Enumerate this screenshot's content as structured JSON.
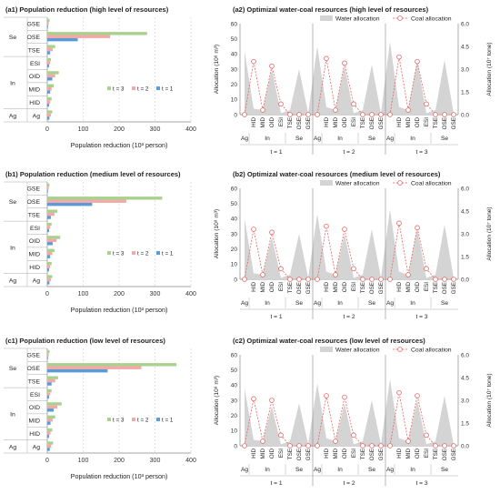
{
  "chart_data": [
    {
      "id": "a1",
      "type": "bar",
      "orientation": "horizontal",
      "title": "(a1) Population reduction  (high level of resources)",
      "xlabel": "Population reduction  (10³ person)",
      "xlim": [
        0,
        400
      ],
      "xticks": [
        0,
        100,
        200,
        300,
        400
      ],
      "categories": [
        "GSE",
        "OSE",
        "TSE",
        "ESI",
        "OID",
        "MID",
        "HID",
        "Ag"
      ],
      "groups": [
        {
          "label": "Se",
          "from": 0,
          "to": 2
        },
        {
          "label": "In",
          "from": 3,
          "to": 6
        },
        {
          "label": "Ag",
          "from": 7,
          "to": 7
        }
      ],
      "series": [
        {
          "name": "t = 3",
          "color": "#a9d18e",
          "values": [
            6,
            278,
            22,
            10,
            32,
            18,
            12,
            14
          ]
        },
        {
          "name": "t = 2",
          "color": "#f4a9a8",
          "values": [
            4,
            175,
            15,
            8,
            22,
            12,
            8,
            10
          ]
        },
        {
          "name": "t = 1",
          "color": "#5b9bd5",
          "values": [
            2,
            85,
            8,
            5,
            14,
            8,
            5,
            6
          ]
        }
      ],
      "legend": "inside-bottom"
    },
    {
      "id": "b1",
      "type": "bar",
      "orientation": "horizontal",
      "title": "(b1) Population reduction  (medium level of resources)",
      "xlabel": "Population reduction  (10³ person)",
      "xlim": [
        0,
        400
      ],
      "xticks": [
        0,
        100,
        200,
        300,
        400
      ],
      "categories": [
        "GSE",
        "OSE",
        "TSE",
        "ESI",
        "OID",
        "MID",
        "HID",
        "Ag"
      ],
      "groups": [
        {
          "label": "Se",
          "from": 0,
          "to": 2
        },
        {
          "label": "In",
          "from": 3,
          "to": 6
        },
        {
          "label": "Ag",
          "from": 7,
          "to": 7
        }
      ],
      "series": [
        {
          "name": "t = 3",
          "color": "#a9d18e",
          "values": [
            6,
            320,
            28,
            12,
            36,
            20,
            12,
            14
          ]
        },
        {
          "name": "t = 2",
          "color": "#f4a9a8",
          "values": [
            4,
            220,
            20,
            8,
            26,
            14,
            8,
            10
          ]
        },
        {
          "name": "t = 1",
          "color": "#5b9bd5",
          "values": [
            2,
            125,
            10,
            5,
            15,
            8,
            5,
            6
          ]
        }
      ],
      "legend": "inside-bottom"
    },
    {
      "id": "c1",
      "type": "bar",
      "orientation": "horizontal",
      "title": "(c1) Population reduction  (low level of resources)",
      "xlabel": "Population reduction  (10³ person)",
      "xlim": [
        0,
        400
      ],
      "xticks": [
        0,
        100,
        200,
        300,
        400
      ],
      "categories": [
        "GSE",
        "OSE",
        "TSE",
        "ESI",
        "OID",
        "MID",
        "HID",
        "Ag"
      ],
      "groups": [
        {
          "label": "Se",
          "from": 0,
          "to": 2
        },
        {
          "label": "In",
          "from": 3,
          "to": 6
        },
        {
          "label": "Ag",
          "from": 7,
          "to": 7
        }
      ],
      "series": [
        {
          "name": "t = 3",
          "color": "#a9d18e",
          "values": [
            6,
            360,
            30,
            12,
            40,
            22,
            14,
            16
          ]
        },
        {
          "name": "t = 2",
          "color": "#f4a9a8",
          "values": [
            4,
            262,
            22,
            8,
            28,
            15,
            9,
            11
          ]
        },
        {
          "name": "t = 1",
          "color": "#5b9bd5",
          "values": [
            2,
            168,
            12,
            5,
            18,
            9,
            5,
            7
          ]
        }
      ],
      "legend": "inside-bottom"
    },
    {
      "id": "a2",
      "type": "area+line",
      "dual_axis": true,
      "title": "(a2)  Optimizal water-coal resources (high level of resources)",
      "ylabel": "Allocation (10⁸ m³)",
      "ylabel2": "Allocation (10⁷ tone)",
      "ylim": [
        0,
        60
      ],
      "yticks": [
        0,
        10,
        20,
        30,
        40,
        50,
        60
      ],
      "ylim2": [
        0,
        6
      ],
      "yticks2": [
        "0.0",
        "1.5",
        "3.0",
        "4.5",
        "6.0"
      ],
      "categories": [
        "Ag",
        "HID",
        "MID",
        "OID",
        "ESI",
        "TSE",
        "OSE",
        "GSE",
        "Ag",
        "HID",
        "MID",
        "OID",
        "ESI",
        "TSE",
        "OSE",
        "GSE",
        "Ag",
        "HID",
        "MID",
        "OID",
        "ESI",
        "TSE",
        "OSE",
        "GSE"
      ],
      "period_labels": [
        "t = 1",
        "t = 2",
        "t = 3"
      ],
      "group_labels": [
        {
          "label": "Ag",
          "index": 0
        },
        {
          "label": "In",
          "index": 2.5
        },
        {
          "label": "Se",
          "index": 6
        },
        {
          "label": "Ag",
          "index": 8
        },
        {
          "label": "In",
          "index": 10.5
        },
        {
          "label": "Se",
          "index": 14
        },
        {
          "label": "Ag",
          "index": 16
        },
        {
          "label": "In",
          "index": 18.5
        },
        {
          "label": "Se",
          "index": 22
        }
      ],
      "series": [
        {
          "name": "Water allocation",
          "type": "area",
          "axis": "left",
          "color": "#d4d4d4",
          "values": [
            42,
            4,
            3,
            30,
            1,
            3,
            30,
            1,
            45,
            5,
            3,
            32,
            1,
            3,
            33,
            1,
            48,
            5,
            3,
            35,
            1,
            3,
            36,
            1
          ]
        },
        {
          "name": "Coal allocation",
          "type": "line",
          "axis": "right",
          "color": "#e06666",
          "values": [
            0,
            3.5,
            0.3,
            3.2,
            0.7,
            0,
            0,
            0,
            0,
            3.7,
            0.3,
            3.4,
            0.7,
            0,
            0,
            0,
            0,
            3.8,
            0.3,
            3.5,
            0.7,
            0,
            0,
            0
          ]
        }
      ],
      "legend": "top-right"
    },
    {
      "id": "b2",
      "type": "area+line",
      "dual_axis": true,
      "title": "(b2)  Optimizal water-coal resources (medium level of resources)",
      "ylabel": "Allocation (10⁸ m³)",
      "ylabel2": "Allocation (10⁷ tone)",
      "ylim": [
        0,
        60
      ],
      "yticks": [
        0,
        10,
        20,
        30,
        40,
        50,
        60
      ],
      "ylim2": [
        0,
        6
      ],
      "yticks2": [
        "0.0",
        "1.5",
        "3.0",
        "4.5",
        "6.0"
      ],
      "categories": [
        "Ag",
        "HID",
        "MID",
        "OID",
        "ESI",
        "TSE",
        "OSE",
        "GSE",
        "Ag",
        "HID",
        "MID",
        "OID",
        "ESI",
        "TSE",
        "OSE",
        "GSE",
        "Ag",
        "HID",
        "MID",
        "OID",
        "ESI",
        "TSE",
        "OSE",
        "GSE"
      ],
      "period_labels": [
        "t = 1",
        "t = 2",
        "t = 3"
      ],
      "group_labels": [
        {
          "label": "Ag",
          "index": 0
        },
        {
          "label": "In",
          "index": 2.5
        },
        {
          "label": "Se",
          "index": 6
        },
        {
          "label": "Ag",
          "index": 8
        },
        {
          "label": "In",
          "index": 10.5
        },
        {
          "label": "Se",
          "index": 14
        },
        {
          "label": "Ag",
          "index": 16
        },
        {
          "label": "In",
          "index": 18.5
        },
        {
          "label": "Se",
          "index": 22
        }
      ],
      "series": [
        {
          "name": "Water allocation",
          "type": "area",
          "axis": "left",
          "color": "#d4d4d4",
          "values": [
            40,
            4,
            3,
            28,
            1,
            3,
            30,
            1,
            43,
            5,
            3,
            30,
            1,
            3,
            33,
            1,
            46,
            5,
            3,
            33,
            1,
            3,
            36,
            1
          ]
        },
        {
          "name": "Coal allocation",
          "type": "line",
          "axis": "right",
          "color": "#e06666",
          "values": [
            0,
            3.3,
            0.3,
            3.1,
            0.7,
            0,
            0,
            0,
            0,
            3.5,
            0.3,
            3.3,
            0.7,
            0,
            0,
            0,
            0,
            3.7,
            0.3,
            3.4,
            0.7,
            0,
            0,
            0
          ]
        }
      ],
      "legend": "top-right"
    },
    {
      "id": "c2",
      "type": "area+line",
      "dual_axis": true,
      "title": "(c2)  Optimizal water-coal resources (low level of resources)",
      "ylabel": "Allocation (10⁸ m³)",
      "ylabel2": "Allocation (10⁷ tone)",
      "ylim": [
        0,
        60
      ],
      "yticks": [
        0,
        10,
        20,
        30,
        40,
        50,
        60
      ],
      "ylim2": [
        0,
        6
      ],
      "yticks2": [
        "0.0",
        "1.5",
        "3.0",
        "4.5",
        "6.0"
      ],
      "categories": [
        "Ag",
        "HID",
        "MID",
        "OID",
        "ESI",
        "TSE",
        "OSE",
        "GSE",
        "Ag",
        "HID",
        "MID",
        "OID",
        "ESI",
        "TSE",
        "OSE",
        "GSE",
        "Ag",
        "HID",
        "MID",
        "OID",
        "ESI",
        "TSE",
        "OSE",
        "GSE"
      ],
      "period_labels": [
        "t = 1",
        "t = 2",
        "t = 3"
      ],
      "group_labels": [
        {
          "label": "Ag",
          "index": 0
        },
        {
          "label": "In",
          "index": 2.5
        },
        {
          "label": "Se",
          "index": 6
        },
        {
          "label": "Ag",
          "index": 8
        },
        {
          "label": "In",
          "index": 10.5
        },
        {
          "label": "Se",
          "index": 14
        },
        {
          "label": "Ag",
          "index": 16
        },
        {
          "label": "In",
          "index": 18.5
        },
        {
          "label": "Se",
          "index": 22
        }
      ],
      "series": [
        {
          "name": "Water allocation",
          "type": "area",
          "axis": "left",
          "color": "#d4d4d4",
          "values": [
            38,
            4,
            3,
            26,
            1,
            3,
            28,
            1,
            41,
            5,
            3,
            28,
            1,
            3,
            30,
            1,
            44,
            5,
            3,
            30,
            1,
            3,
            33,
            1
          ]
        },
        {
          "name": "Coal allocation",
          "type": "line",
          "axis": "right",
          "color": "#e06666",
          "values": [
            0,
            3.1,
            0.3,
            3.0,
            0.7,
            0,
            0,
            0,
            0,
            3.3,
            0.3,
            3.2,
            0.7,
            0,
            0,
            0,
            0,
            3.5,
            0.3,
            3.3,
            0.7,
            0,
            0,
            0
          ]
        }
      ],
      "legend": "top-right"
    }
  ]
}
